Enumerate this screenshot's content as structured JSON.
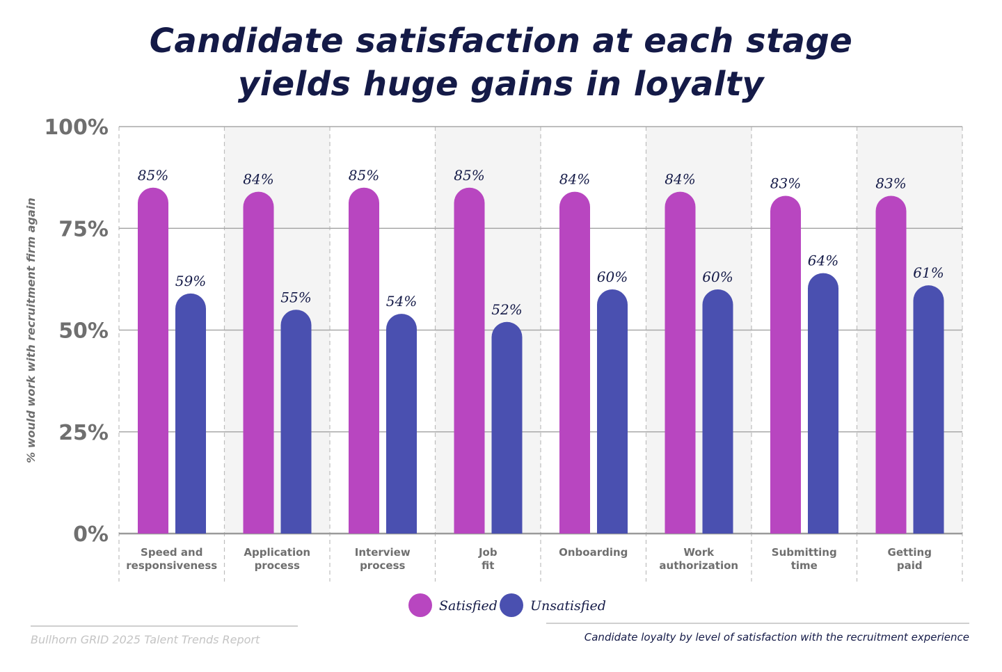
{
  "chart_data": {
    "type": "bar",
    "title": "Candidate satisfaction at each stage yields huge gains in loyalty",
    "ylabel": "% would work with recruitment firm again",
    "xlabel": "",
    "ylim": [
      0,
      100
    ],
    "yticks": [
      "0%",
      "25%",
      "50%",
      "75%",
      "100%"
    ],
    "grid": true,
    "legend_position": "bottom",
    "categories": [
      [
        "Speed and",
        "responsiveness"
      ],
      [
        "Application",
        "process"
      ],
      [
        "Interview",
        "process"
      ],
      [
        "Job",
        "fit"
      ],
      [
        "Onboarding"
      ],
      [
        "Work",
        "authorization"
      ],
      [
        "Submitting",
        "time"
      ],
      [
        "Getting",
        "paid"
      ]
    ],
    "series": [
      {
        "name": "Satisfied",
        "color": "#b846c0",
        "values": [
          85,
          84,
          85,
          85,
          84,
          84,
          83,
          83
        ]
      },
      {
        "name": "Unsatisfied",
        "color": "#4a50b0",
        "values": [
          59,
          55,
          54,
          52,
          60,
          60,
          64,
          61
        ]
      }
    ]
  },
  "footer": {
    "source": "Bullhorn GRID 2025 Talent Trends Report",
    "caption": "Candidate loyalty by level of satisfaction with the recruitment experience"
  }
}
